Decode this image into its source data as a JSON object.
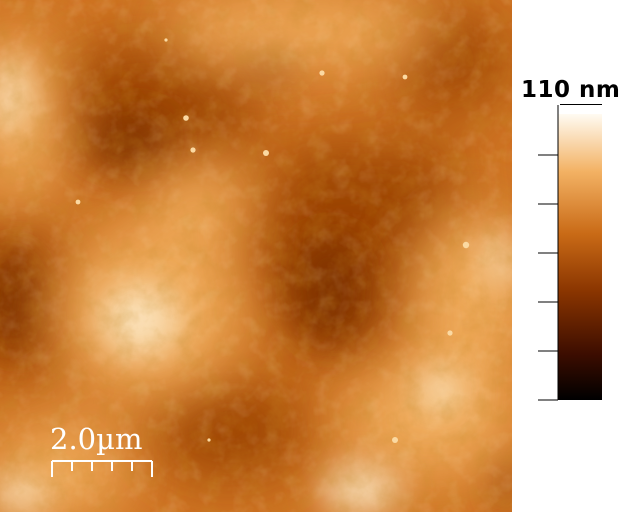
{
  "image": {
    "type": "afm-height-map",
    "palette": "gold-brown",
    "colors": {
      "dark": "#000000",
      "low": "#8a3500",
      "mid": "#c96a16",
      "high": "#f3b264",
      "peak": "#fffbf2"
    }
  },
  "colorbar": {
    "max_label": "110 nm",
    "ticks": 6
  },
  "scalebar": {
    "label": "2.0µm",
    "color": "#ffffff"
  }
}
